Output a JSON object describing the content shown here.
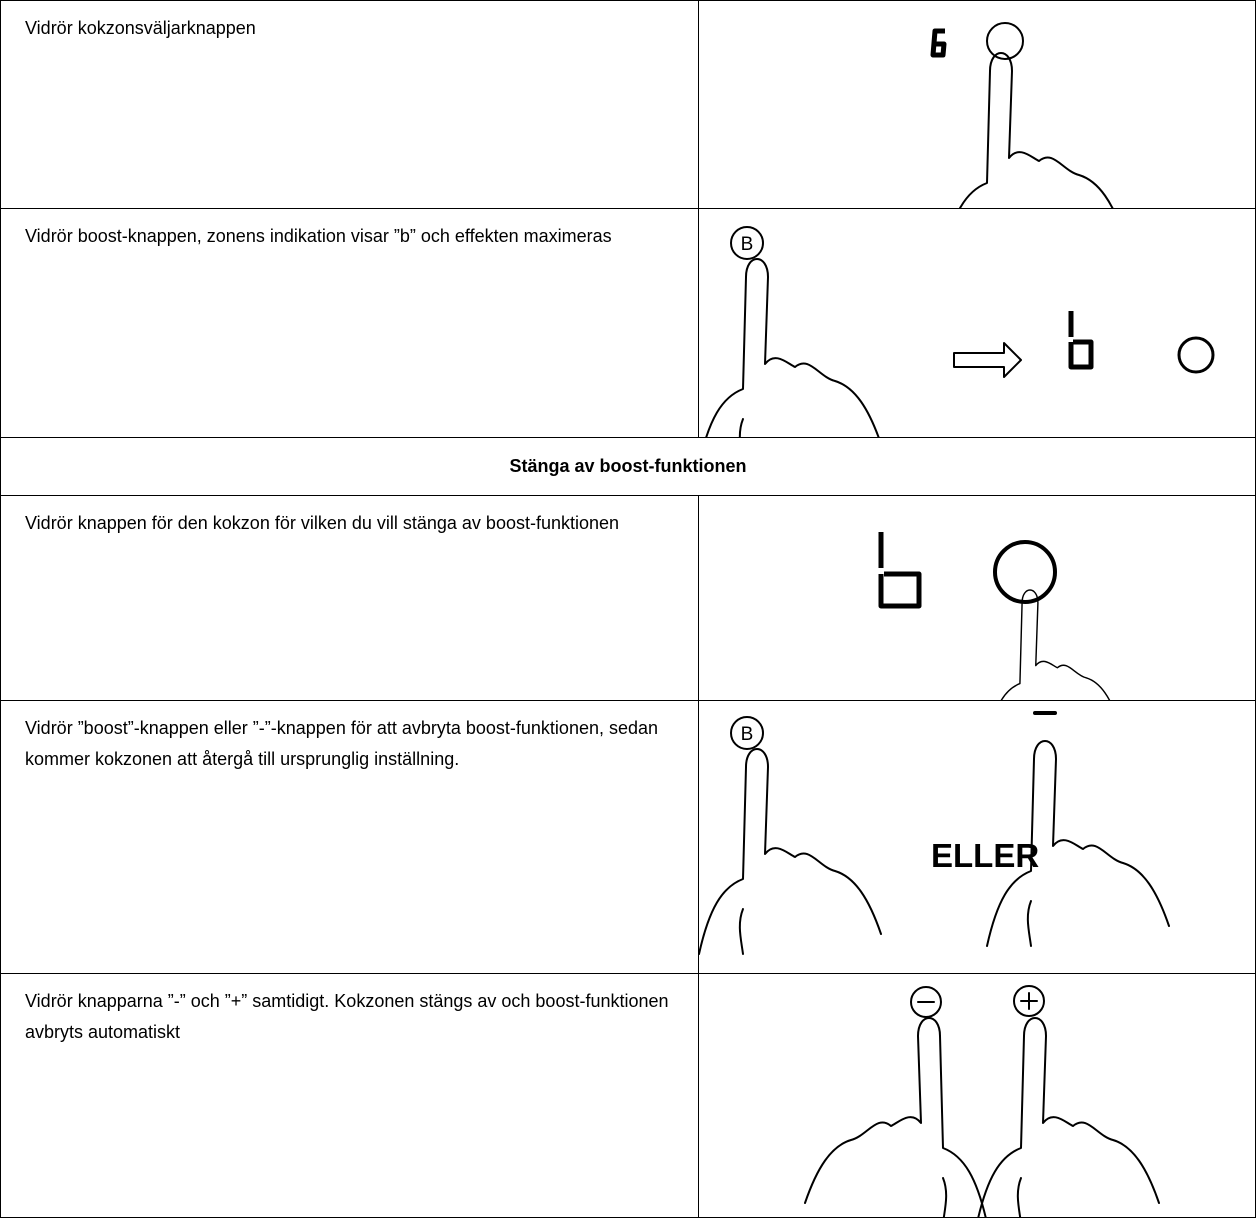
{
  "table": {
    "rows": [
      {
        "instruction": "Vidrör kokzonsväljarknappen"
      },
      {
        "instruction": "Vidrör boost-knappen, zonens indikation visar ”b” och effekten maximeras",
        "button": "B"
      },
      {
        "heading": "Stänga av boost-funktionen"
      },
      {
        "instruction": "Vidrör knappen för den kokzon för vilken du vill stänga av boost-funktionen"
      },
      {
        "instruction": "Vidrör ”boost”-knappen eller ”-”-knappen för att avbryta boost-funktionen, sedan kommer kokzonen att återgå till ursprunglig inställning.",
        "button": "B",
        "or": "ELLER"
      },
      {
        "instruction": "Vidrör knapparna ”-” och ”+” samtidigt. Kokzonen stängs av och boost-funktionen avbryts automatiskt"
      }
    ]
  }
}
